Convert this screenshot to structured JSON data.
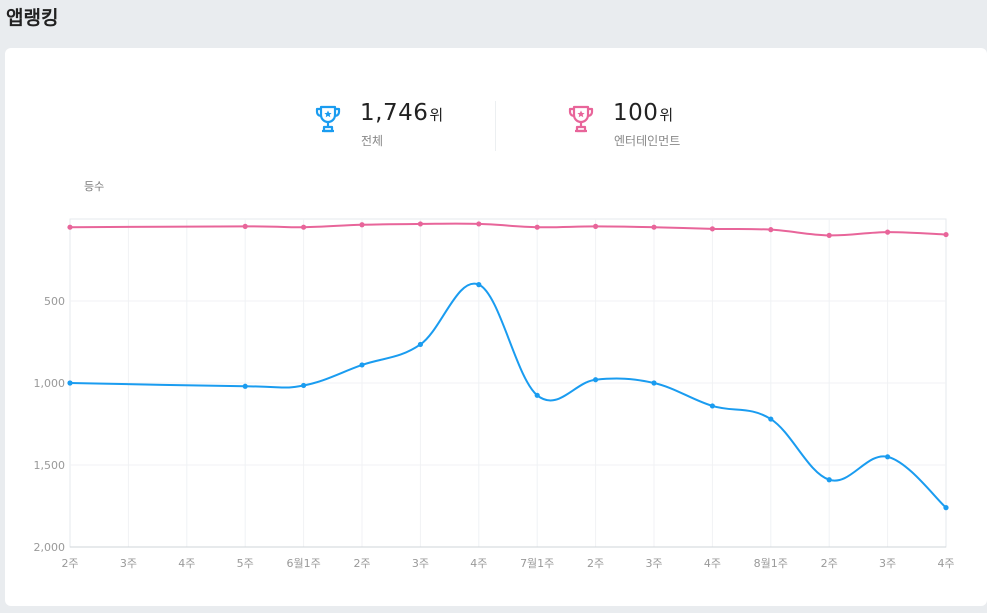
{
  "page": {
    "title": "앱랭킹"
  },
  "summary": {
    "overall": {
      "rank": "1,746",
      "unit": "위",
      "label": "전체",
      "color": "#1a9cf0",
      "icon": "trophy-icon"
    },
    "category": {
      "rank": "100",
      "unit": "위",
      "label": "엔터테인먼트",
      "color": "#e8659a",
      "icon": "trophy-icon"
    }
  },
  "chart_data": {
    "type": "line",
    "ylabel": "등수",
    "y_inverted": true,
    "ylim": [
      0,
      2000
    ],
    "ytick_values": [
      500,
      1000,
      1500,
      2000
    ],
    "ytick_labels": [
      "500",
      "1,000",
      "1,500",
      "2,000"
    ],
    "grid": true,
    "x": [
      "2주",
      "3주",
      "4주",
      "5주",
      "6월1주",
      "2주",
      "3주",
      "4주",
      "7월1주",
      "2주",
      "3주",
      "4주",
      "8월1주",
      "2주",
      "3주",
      "4주"
    ],
    "series": [
      {
        "name": "전체",
        "color": "#1a9cf0",
        "values": [
          1000,
          null,
          null,
          1020,
          1015,
          890,
          765,
          400,
          1075,
          980,
          1000,
          1140,
          1220,
          1590,
          1450,
          1760
        ]
      },
      {
        "name": "엔터테인먼트",
        "color": "#e8659a",
        "values": [
          50,
          null,
          null,
          45,
          50,
          35,
          30,
          30,
          50,
          45,
          50,
          60,
          65,
          100,
          80,
          95
        ]
      }
    ]
  }
}
